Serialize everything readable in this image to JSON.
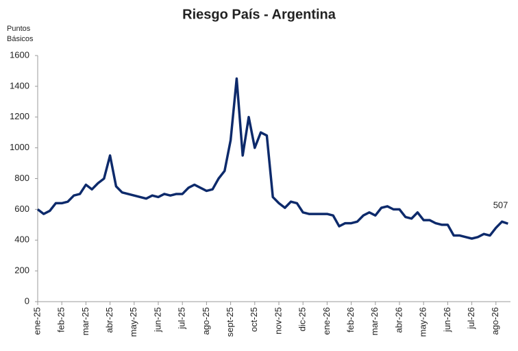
{
  "chart_data": {
    "type": "line",
    "title": "Riesgo País - Argentina",
    "ylabel": [
      "Puntos",
      "Básicos"
    ],
    "categories": [
      "ene-25",
      null,
      null,
      null,
      "feb-25",
      null,
      null,
      null,
      "mar-25",
      null,
      null,
      null,
      "abr-25",
      null,
      null,
      null,
      "may-25",
      null,
      null,
      null,
      "jun-25",
      null,
      null,
      null,
      "jul-25",
      null,
      null,
      null,
      "ago-25",
      null,
      null,
      null,
      "sept-25",
      null,
      null,
      null,
      "oct-25",
      null,
      null,
      null,
      "nov-25",
      null,
      null,
      null,
      "dic-25",
      null,
      null,
      null,
      "ene-26",
      null,
      null,
      null,
      "feb-26",
      null,
      null,
      null,
      "mar-26",
      null,
      null,
      null,
      "abr-26",
      null,
      null,
      null,
      "may-26",
      null,
      null,
      null,
      "jun-26",
      null,
      null,
      null,
      "jul-26",
      null,
      null,
      null,
      "ago-26",
      null,
      null
    ],
    "series": [
      {
        "color": "#0d2a6b",
        "values": [
          600,
          570,
          590,
          640,
          640,
          650,
          690,
          700,
          760,
          730,
          770,
          800,
          950,
          750,
          710,
          700,
          690,
          680,
          670,
          690,
          680,
          700,
          690,
          700,
          700,
          740,
          760,
          740,
          720,
          730,
          800,
          850,
          1050,
          1450,
          950,
          1200,
          1000,
          1100,
          1080,
          680,
          640,
          610,
          650,
          640,
          580,
          570,
          570,
          570,
          570,
          560,
          490,
          510,
          510,
          520,
          560,
          580,
          560,
          610,
          620,
          600,
          600,
          550,
          540,
          580,
          530,
          530,
          510,
          500,
          500,
          430,
          430,
          420,
          410,
          420,
          440,
          430,
          480,
          520,
          507
        ]
      }
    ],
    "ylim": [
      0,
      1600
    ],
    "yticks": [
      0,
      200,
      400,
      600,
      800,
      1000,
      1200,
      1400,
      1600
    ],
    "grid": false
  }
}
